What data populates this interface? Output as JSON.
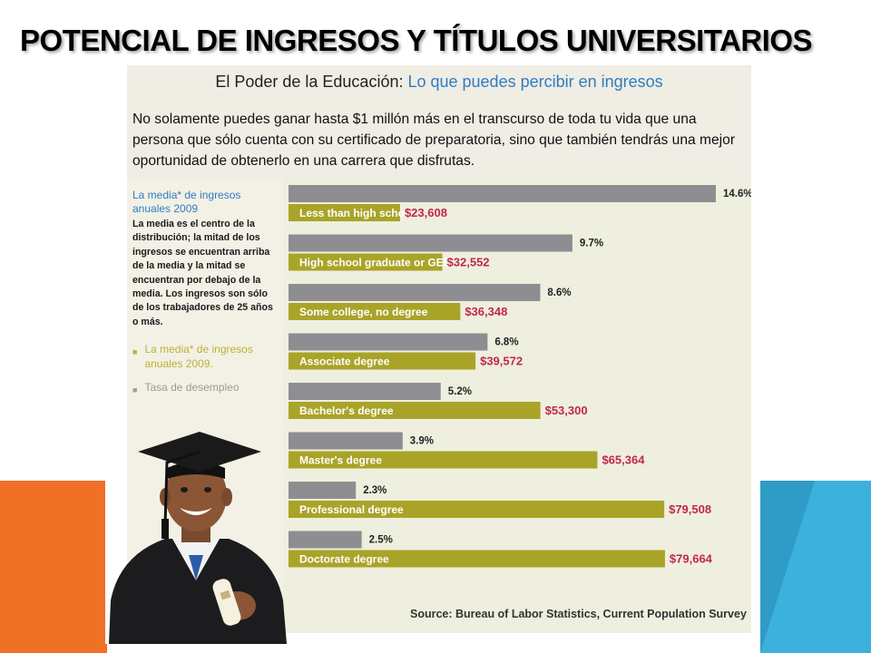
{
  "slide": {
    "title": "POTENCIAL DE INGRESOS Y TÍTULOS UNIVERSITARIOS"
  },
  "infographic": {
    "heading_plain": "El Poder de la Educación: ",
    "heading_accent": "Lo que puedes percibir en ingresos",
    "intro": "No solamente puedes ganar hasta $1 millón más en el transcurso de toda tu vida que una persona que sólo cuenta con su certificado de preparatoria, sino que también tendrás una mejor oportunidad de obtenerlo en una carrera que disfrutas.",
    "left_title": "La media* de ingresos anuales 2009",
    "left_description": "La media es el centro de la distribución; la mitad de los ingresos se encuentran arriba de la media y la mitad se encuentran por debajo de la media. Los ingresos son sólo de los trabajadores de 25 años o más.",
    "legend": [
      {
        "label": "La media* de ingresos anuales 2009."
      },
      {
        "label": "Tasa de desempleo"
      }
    ],
    "source": "Source: Bureau of Labor Statistics, Current Population Survey"
  },
  "colors": {
    "earnings_bar": "#a9a428",
    "unemployment_bar": "#8e8e92",
    "earnings_text": "#c0284b",
    "accent_blue": "#2f7cc1",
    "deco_orange": "#f07126",
    "deco_blue": "#3cb1de"
  },
  "chart_data": {
    "type": "bar",
    "orientation": "horizontal",
    "categories": [
      "Less than high school",
      "High school graduate or GED",
      "Some college, no degree",
      "Associate degree",
      "Bachelor's degree",
      "Master's degree",
      "Professional degree",
      "Doctorate degree"
    ],
    "series": [
      {
        "name": "Tasa de desempleo",
        "values": [
          14.6,
          9.7,
          8.6,
          6.8,
          5.2,
          3.9,
          2.3,
          2.5
        ],
        "labels": [
          "14.6%",
          "9.7%",
          "8.6%",
          "6.8%",
          "5.2%",
          "3.9%",
          "2.3%",
          "2.5%"
        ],
        "xlim": [
          0,
          15.5
        ]
      },
      {
        "name": "La media* de ingresos anuales 2009.",
        "values": [
          23608,
          32552,
          36348,
          39572,
          53300,
          65364,
          79508,
          79664
        ],
        "labels": [
          "$23,608",
          "$32,552",
          "$36,348",
          "$39,572",
          "$53,300",
          "$65,364",
          "$79,508",
          "$79,664"
        ],
        "xlim": [
          0,
          96000
        ]
      }
    ],
    "legend_position": "left",
    "grid": false
  }
}
